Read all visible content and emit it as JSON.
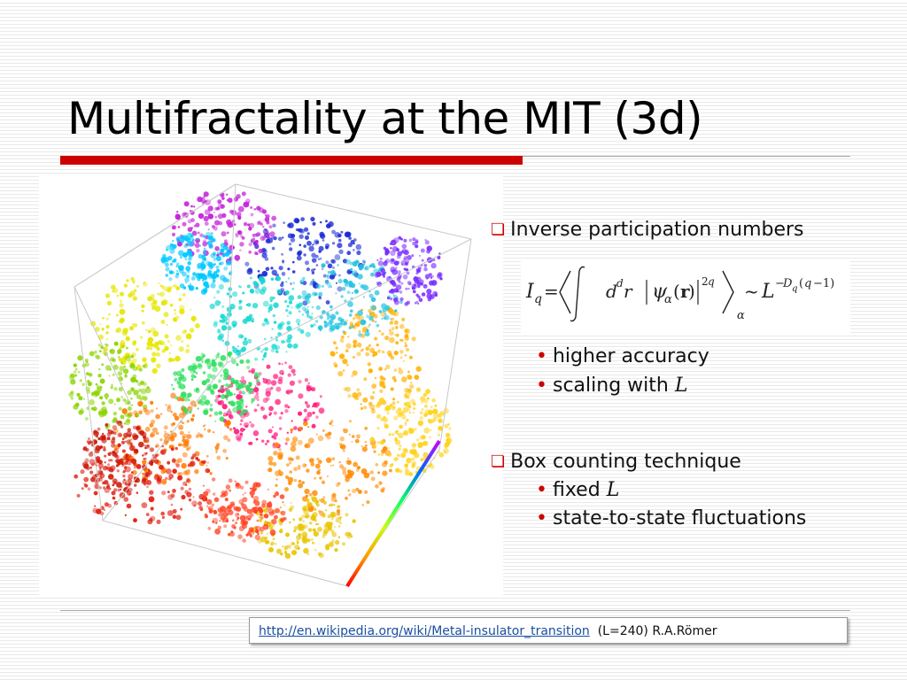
{
  "slide": {
    "title": "Multifractality at the MIT (3d)"
  },
  "figure": {
    "description_icon": "multifractal-wavefunction-3d-render"
  },
  "bullets": [
    {
      "label": "Inverse participation numbers",
      "equation": "I_q = ⟨∫ d^d r |ψ_α(r)|^{2q}⟩_α ~ L^{-D_q(q-1)}",
      "subitems": [
        {
          "text": "higher accuracy",
          "var": ""
        },
        {
          "text": "scaling with ",
          "var": "L"
        }
      ]
    },
    {
      "label": "Box counting technique",
      "subitems": [
        {
          "text": "fixed ",
          "var": "L"
        },
        {
          "text": "state-to-state fluctuations",
          "var": ""
        }
      ]
    }
  ],
  "footer": {
    "link": "http://en.wikipedia.org/wiki/Metal-insulator_transition",
    "credit": "(L=240) R.A.Römer"
  },
  "colors": {
    "accent": "#cc0000",
    "link": "#1a4fa0"
  }
}
